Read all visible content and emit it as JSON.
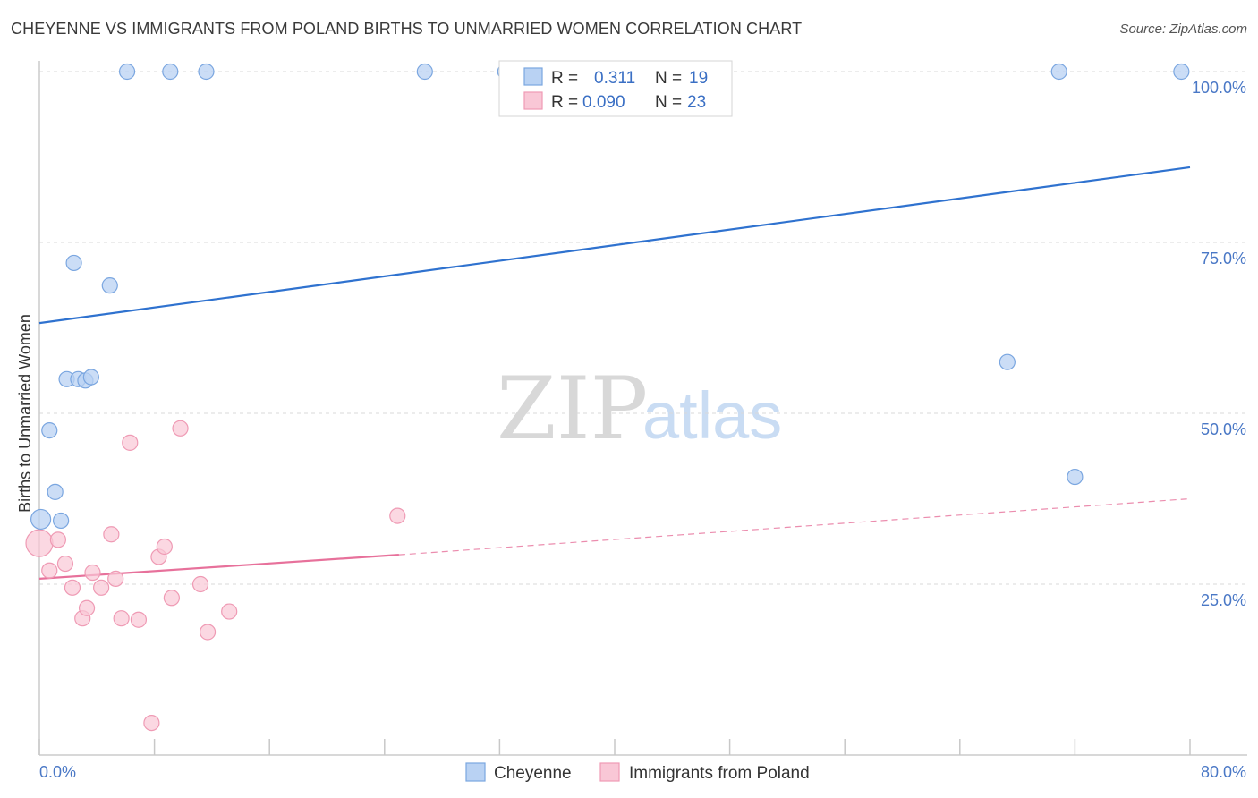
{
  "title": "CHEYENNE VS IMMIGRANTS FROM POLAND BIRTHS TO UNMARRIED WOMEN CORRELATION CHART",
  "source": "Source: ZipAtlas.com",
  "watermark": {
    "zip": "ZIP",
    "atlas": "atlas"
  },
  "colors": {
    "cheyenne_fill": "#b9d2f3",
    "cheyenne_stroke": "#7aa6e0",
    "cheyenne_line": "#2f72cf",
    "poland_fill": "#f9c7d6",
    "poland_stroke": "#ef9ab4",
    "poland_line": "#e7719b",
    "grid": "#d9d9d9",
    "tick_text": "#4a78c6"
  },
  "legend": {
    "rows": [
      {
        "series": "Cheyenne",
        "r_label": "R =",
        "r_value": "0.311",
        "n_label": "N =",
        "n_value": "19"
      },
      {
        "series": "Immigrants from Poland",
        "r_label": "R =",
        "r_value": "0.090",
        "n_label": "N =",
        "n_value": "23"
      }
    ]
  },
  "chart_data": {
    "type": "scatter",
    "title": "CHEYENNE VS IMMIGRANTS FROM POLAND BIRTHS TO UNMARRIED WOMEN CORRELATION CHART",
    "xlabel": "",
    "ylabel": "Births to Unmarried Women",
    "xlim": [
      0,
      80
    ],
    "ylim": [
      0,
      100
    ],
    "x_tick_labels": [
      "0.0%",
      "80.0%"
    ],
    "y_ticks": [
      25,
      50,
      75,
      100
    ],
    "y_tick_labels": [
      "25.0%",
      "50.0%",
      "75.0%",
      "100.0%"
    ],
    "grid": true,
    "legend_position": "top-center",
    "series": [
      {
        "name": "Cheyenne",
        "r": 0.311,
        "n": 19,
        "points": [
          [
            0.1,
            34.5
          ],
          [
            0.7,
            47.5
          ],
          [
            1.1,
            38.5
          ],
          [
            1.5,
            34.3
          ],
          [
            1.9,
            55.0
          ],
          [
            2.7,
            55.0
          ],
          [
            3.2,
            54.8
          ],
          [
            3.6,
            55.3
          ],
          [
            2.4,
            72.0
          ],
          [
            4.9,
            68.7
          ],
          [
            6.1,
            100
          ],
          [
            9.1,
            100
          ],
          [
            11.6,
            100
          ],
          [
            26.8,
            100
          ],
          [
            32.4,
            100
          ],
          [
            67.3,
            57.5
          ],
          [
            72.0,
            40.7
          ],
          [
            70.9,
            100
          ],
          [
            79.4,
            100
          ]
        ],
        "trend": {
          "x": [
            0,
            80
          ],
          "y": [
            63.2,
            86.0
          ]
        }
      },
      {
        "name": "Immigrants from Poland",
        "r": 0.09,
        "n": 23,
        "points": [
          [
            0.0,
            31.0
          ],
          [
            0.7,
            27.0
          ],
          [
            1.3,
            31.5
          ],
          [
            1.8,
            28.0
          ],
          [
            2.3,
            24.5
          ],
          [
            3.0,
            20.0
          ],
          [
            3.3,
            21.5
          ],
          [
            3.7,
            26.7
          ],
          [
            4.3,
            24.5
          ],
          [
            5.0,
            32.3
          ],
          [
            5.3,
            25.8
          ],
          [
            5.7,
            20.0
          ],
          [
            6.3,
            45.7
          ],
          [
            6.9,
            19.8
          ],
          [
            8.3,
            29.0
          ],
          [
            8.7,
            30.5
          ],
          [
            9.2,
            23.0
          ],
          [
            9.8,
            47.8
          ],
          [
            11.2,
            25.0
          ],
          [
            11.7,
            18.0
          ],
          [
            13.2,
            21.0
          ],
          [
            24.9,
            35.0
          ],
          [
            7.8,
            4.7
          ]
        ],
        "trend_solid": {
          "x": [
            0,
            25
          ],
          "y": [
            25.8,
            29.3
          ]
        },
        "trend_dashed": {
          "x": [
            25,
            80
          ],
          "y": [
            29.3,
            37.5
          ]
        }
      }
    ]
  }
}
